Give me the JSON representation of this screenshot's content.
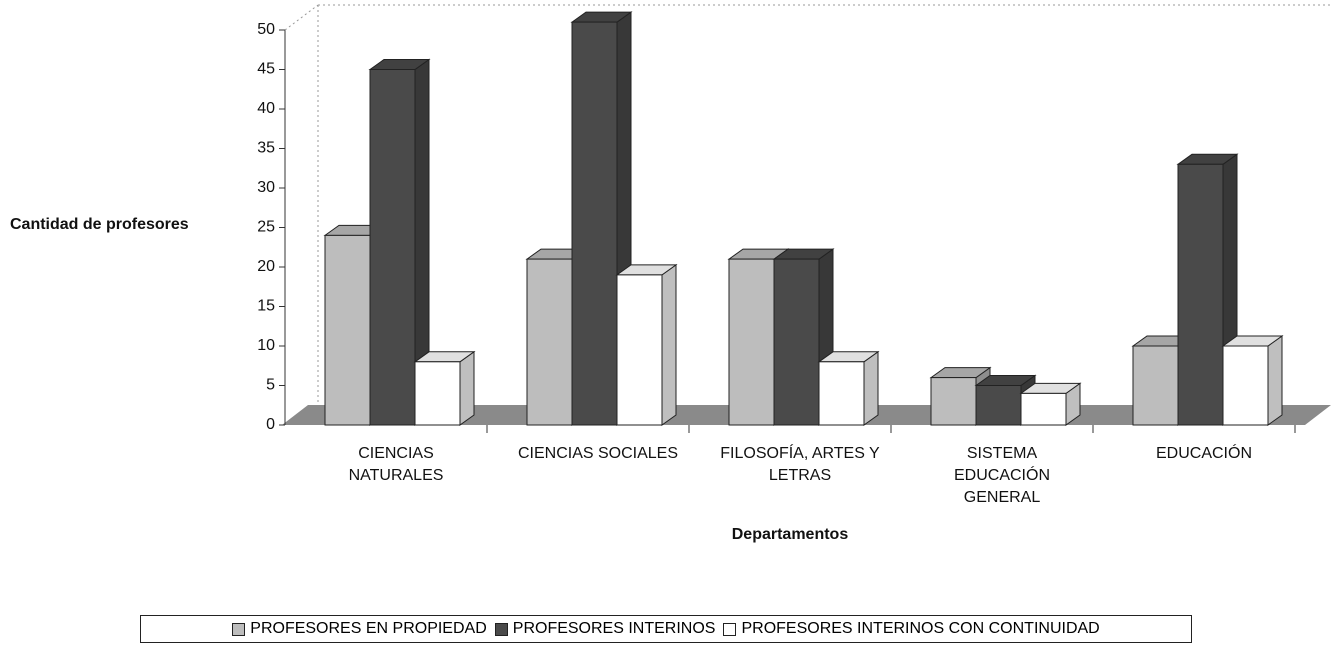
{
  "chart_data": {
    "type": "bar3d",
    "y_label": "Cantidad de profesores",
    "x_label": "Departamentos",
    "categories": [
      "CIENCIAS\nNATURALES",
      "CIENCIAS SOCIALES",
      "FILOSOFÍA, ARTES Y\nLETRAS",
      "SISTEMA\nEDUCACIÓN\nGENERAL",
      "EDUCACIÓN"
    ],
    "series": [
      {
        "name": "PROFESORES EN PROPIEDAD",
        "color": "#bdbdbd",
        "values": [
          24,
          21,
          21,
          6,
          10
        ]
      },
      {
        "name": "PROFESORES INTERINOS",
        "color": "#4a4a4a",
        "values": [
          45,
          51,
          21,
          5,
          33
        ]
      },
      {
        "name": "PROFESORES INTERINOS CON CONTINUIDAD",
        "color": "#ffffff",
        "values": [
          8,
          19,
          8,
          4,
          10
        ]
      }
    ],
    "ylim": [
      0,
      50
    ],
    "yticks": [
      0,
      5,
      10,
      15,
      20,
      25,
      30,
      35,
      40,
      45,
      50
    ]
  }
}
